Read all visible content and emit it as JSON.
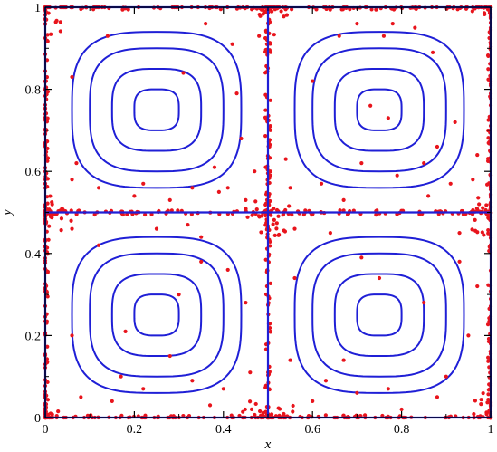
{
  "chart_data": {
    "type": "scatter",
    "title": "",
    "xlabel": "x",
    "ylabel": "y",
    "xlim": [
      0,
      1
    ],
    "ylim": [
      0,
      1
    ],
    "x_ticks": [
      "0",
      "0.2",
      "0.4",
      "0.6",
      "0.8",
      "1"
    ],
    "y_ticks": [
      "0",
      "0.2",
      "0.4",
      "0.6",
      "0.8",
      "1"
    ],
    "x_tick_values": [
      0,
      0.2,
      0.4,
      0.6,
      0.8,
      1.0
    ],
    "y_tick_values": [
      0,
      0.2,
      0.4,
      0.6,
      0.8,
      1.0
    ],
    "grid": false,
    "legend": "none",
    "colors": {
      "contour": "#1f1fd6",
      "particles": "#e8141c",
      "axes": "#000000"
    },
    "cells": [
      {
        "cx": 0.25,
        "cy": 0.25
      },
      {
        "cx": 0.75,
        "cy": 0.25
      },
      {
        "cx": 0.25,
        "cy": 0.75
      },
      {
        "cx": 0.75,
        "cy": 0.75
      }
    ],
    "separatrices": {
      "x": [
        0.0,
        0.5,
        1.0
      ],
      "y": [
        0.0,
        0.5,
        1.0
      ]
    },
    "contour_half_widths": [
      0.19,
      0.15,
      0.1,
      0.05
    ],
    "interior_particles": [
      [
        0.31,
        0.84
      ],
      [
        0.48,
        0.93
      ],
      [
        0.42,
        0.91
      ],
      [
        0.43,
        0.79
      ],
      [
        0.44,
        0.68
      ],
      [
        0.38,
        0.61
      ],
      [
        0.47,
        0.6
      ],
      [
        0.33,
        0.56
      ],
      [
        0.41,
        0.56
      ],
      [
        0.12,
        0.56
      ],
      [
        0.2,
        0.54
      ],
      [
        0.22,
        0.57
      ],
      [
        0.06,
        0.58
      ],
      [
        0.07,
        0.62
      ],
      [
        0.06,
        0.83
      ],
      [
        0.14,
        0.93
      ],
      [
        0.36,
        0.96
      ],
      [
        0.45,
        0.53
      ],
      [
        0.28,
        0.53
      ],
      [
        0.39,
        0.55
      ],
      [
        0.66,
        0.93
      ],
      [
        0.7,
        0.96
      ],
      [
        0.76,
        0.93
      ],
      [
        0.83,
        0.95
      ],
      [
        0.87,
        0.89
      ],
      [
        0.92,
        0.72
      ],
      [
        0.88,
        0.66
      ],
      [
        0.85,
        0.62
      ],
      [
        0.91,
        0.57
      ],
      [
        0.96,
        0.58
      ],
      [
        0.79,
        0.59
      ],
      [
        0.62,
        0.57
      ],
      [
        0.55,
        0.56
      ],
      [
        0.54,
        0.63
      ],
      [
        0.6,
        0.82
      ],
      [
        0.73,
        0.76
      ],
      [
        0.77,
        0.73
      ],
      [
        0.67,
        0.53
      ],
      [
        0.86,
        0.54
      ],
      [
        0.97,
        0.64
      ],
      [
        0.71,
        0.62
      ],
      [
        0.78,
        0.96
      ],
      [
        0.06,
        0.46
      ],
      [
        0.12,
        0.42
      ],
      [
        0.25,
        0.46
      ],
      [
        0.32,
        0.47
      ],
      [
        0.35,
        0.44
      ],
      [
        0.35,
        0.38
      ],
      [
        0.3,
        0.3
      ],
      [
        0.28,
        0.15
      ],
      [
        0.18,
        0.21
      ],
      [
        0.17,
        0.1
      ],
      [
        0.33,
        0.09
      ],
      [
        0.4,
        0.07
      ],
      [
        0.46,
        0.11
      ],
      [
        0.45,
        0.28
      ],
      [
        0.41,
        0.36
      ],
      [
        0.06,
        0.2
      ],
      [
        0.08,
        0.05
      ],
      [
        0.15,
        0.04
      ],
      [
        0.22,
        0.07
      ],
      [
        0.37,
        0.03
      ],
      [
        0.56,
        0.46
      ],
      [
        0.64,
        0.45
      ],
      [
        0.71,
        0.39
      ],
      [
        0.75,
        0.34
      ],
      [
        0.85,
        0.28
      ],
      [
        0.93,
        0.45
      ],
      [
        0.95,
        0.2
      ],
      [
        0.9,
        0.1
      ],
      [
        0.88,
        0.05
      ],
      [
        0.8,
        0.02
      ],
      [
        0.7,
        0.06
      ],
      [
        0.6,
        0.04
      ],
      [
        0.55,
        0.14
      ],
      [
        0.56,
        0.34
      ],
      [
        0.67,
        0.14
      ],
      [
        0.93,
        0.38
      ],
      [
        0.97,
        0.32
      ],
      [
        0.77,
        0.07
      ],
      [
        0.63,
        0.09
      ]
    ]
  }
}
